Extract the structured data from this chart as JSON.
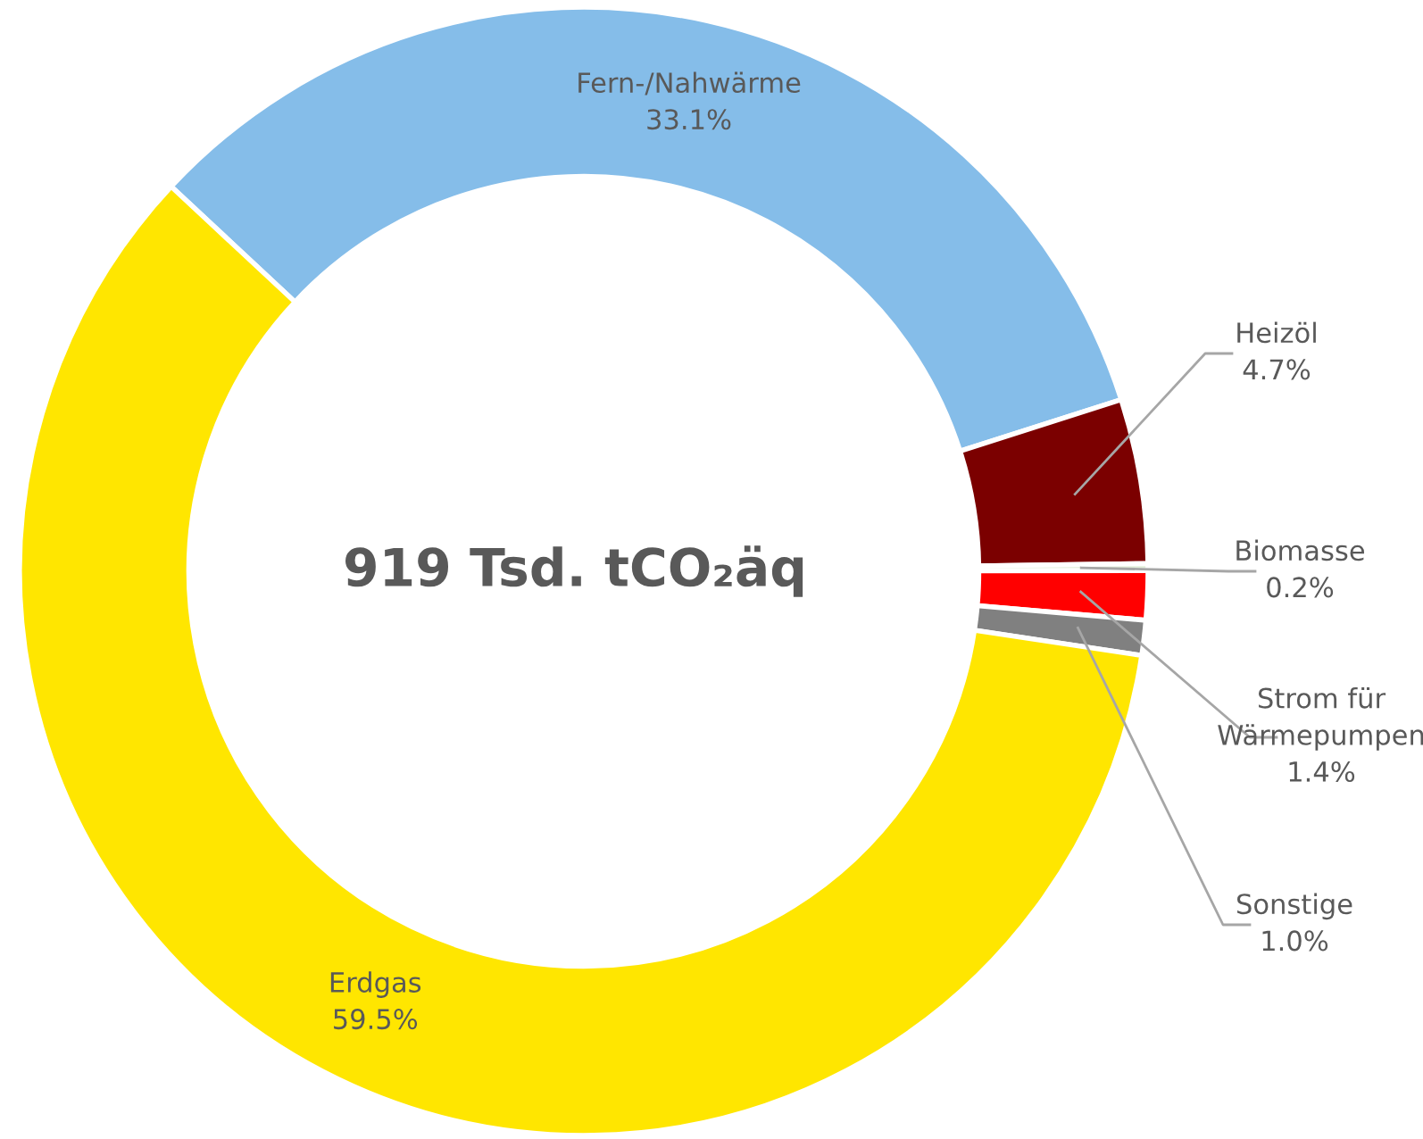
{
  "chart_data": {
    "type": "donut",
    "categories": [
      "Fern-/Nahwärme",
      "Heizöl",
      "Biomasse",
      "Strom für Wärmepumpen",
      "Sonstige",
      "Erdgas"
    ],
    "values": [
      33.1,
      4.7,
      0.2,
      1.4,
      1.0,
      59.5
    ],
    "value_labels": [
      "33.1%",
      "4.7%",
      "0.2%",
      "1.4%",
      "1.0%",
      "59.5%"
    ],
    "colors": [
      "#85bde9",
      "#7b0000",
      "#e2efda",
      "#ff0000",
      "#808080",
      "#ffe600"
    ],
    "annotations": [
      "919 Tsd. tCO₂äq"
    ],
    "legend": false
  }
}
